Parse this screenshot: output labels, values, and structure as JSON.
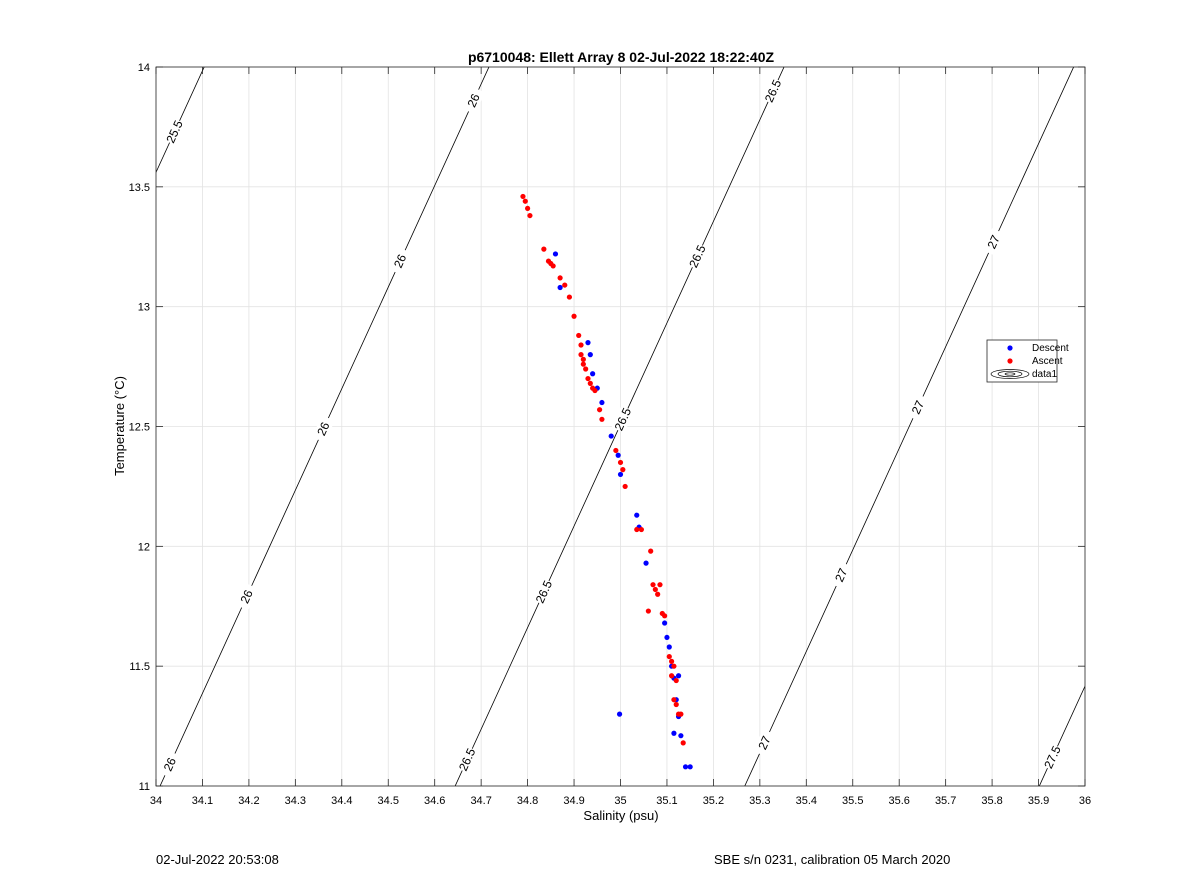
{
  "chart_data": {
    "type": "scatter",
    "title": "p6710048: Ellett Array 8 02-Jul-2022 18:22:40Z",
    "xlabel": "Salinity (psu)",
    "ylabel": "Temperature (°C)",
    "xlim": [
      34,
      36
    ],
    "ylim": [
      11,
      14
    ],
    "x_ticks": [
      34,
      34.1,
      34.2,
      34.3,
      34.4,
      34.5,
      34.6,
      34.7,
      34.8,
      34.9,
      35,
      35.1,
      35.2,
      35.3,
      35.4,
      35.5,
      35.6,
      35.7,
      35.8,
      35.9,
      36
    ],
    "x_tick_labels": [
      "34",
      "34.1",
      "34.2",
      "34.3",
      "34.4",
      "34.5",
      "34.6",
      "34.7",
      "34.8",
      "34.9",
      "35",
      "35.1",
      "35.2",
      "35.3",
      "35.4",
      "35.5",
      "35.6",
      "35.7",
      "35.8",
      "35.9",
      "36"
    ],
    "y_ticks": [
      11,
      11.5,
      12,
      12.5,
      13,
      13.5,
      14
    ],
    "y_tick_labels": [
      "11",
      "11.5",
      "12",
      "12.5",
      "13",
      "13.5",
      "14"
    ],
    "grid": true,
    "legend_position": "right",
    "series": [
      {
        "name": "Descent",
        "color": "#0000ff",
        "points": [
          [
            34.86,
            13.22
          ],
          [
            34.87,
            13.08
          ],
          [
            34.93,
            12.85
          ],
          [
            34.935,
            12.8
          ],
          [
            34.94,
            12.72
          ],
          [
            34.95,
            12.66
          ],
          [
            34.96,
            12.6
          ],
          [
            34.98,
            12.46
          ],
          [
            34.995,
            12.38
          ],
          [
            35.0,
            12.3
          ],
          [
            35.035,
            12.13
          ],
          [
            35.04,
            12.08
          ],
          [
            35.055,
            11.93
          ],
          [
            35.095,
            11.68
          ],
          [
            35.1,
            11.62
          ],
          [
            35.105,
            11.58
          ],
          [
            35.11,
            11.5
          ],
          [
            35.115,
            11.45
          ],
          [
            35.125,
            11.46
          ],
          [
            35.12,
            11.36
          ],
          [
            35.125,
            11.29
          ],
          [
            35.13,
            11.21
          ],
          [
            35.115,
            11.22
          ],
          [
            35.14,
            11.08
          ],
          [
            35.15,
            11.08
          ],
          [
            34.998,
            11.3
          ]
        ]
      },
      {
        "name": "Ascent",
        "color": "#ff0000",
        "points": [
          [
            34.79,
            13.46
          ],
          [
            34.795,
            13.44
          ],
          [
            34.8,
            13.41
          ],
          [
            34.805,
            13.38
          ],
          [
            34.835,
            13.24
          ],
          [
            34.845,
            13.19
          ],
          [
            34.85,
            13.18
          ],
          [
            34.855,
            13.17
          ],
          [
            34.87,
            13.12
          ],
          [
            34.88,
            13.09
          ],
          [
            34.89,
            13.04
          ],
          [
            34.9,
            12.96
          ],
          [
            34.91,
            12.88
          ],
          [
            34.915,
            12.84
          ],
          [
            34.915,
            12.8
          ],
          [
            34.92,
            12.78
          ],
          [
            34.92,
            12.76
          ],
          [
            34.925,
            12.74
          ],
          [
            34.93,
            12.7
          ],
          [
            34.935,
            12.68
          ],
          [
            34.94,
            12.66
          ],
          [
            34.945,
            12.65
          ],
          [
            34.955,
            12.57
          ],
          [
            34.96,
            12.53
          ],
          [
            34.99,
            12.4
          ],
          [
            35.0,
            12.35
          ],
          [
            35.005,
            12.32
          ],
          [
            35.01,
            12.25
          ],
          [
            35.035,
            12.07
          ],
          [
            35.045,
            12.07
          ],
          [
            35.065,
            11.98
          ],
          [
            35.07,
            11.84
          ],
          [
            35.075,
            11.82
          ],
          [
            35.08,
            11.8
          ],
          [
            35.085,
            11.84
          ],
          [
            35.06,
            11.73
          ],
          [
            35.09,
            11.72
          ],
          [
            35.095,
            11.71
          ],
          [
            35.105,
            11.54
          ],
          [
            35.11,
            11.52
          ],
          [
            35.115,
            11.5
          ],
          [
            35.11,
            11.46
          ],
          [
            35.12,
            11.44
          ],
          [
            35.115,
            11.36
          ],
          [
            35.12,
            11.34
          ],
          [
            35.125,
            11.3
          ],
          [
            35.13,
            11.3
          ],
          [
            35.135,
            11.18
          ]
        ]
      }
    ],
    "legend_extra": "data1",
    "contours": [
      {
        "label": "25.5",
        "label_positions": [
          [
            34.04,
            13.73
          ]
        ]
      },
      {
        "label": "26",
        "label_positions": [
          [
            34.03,
            11.09
          ],
          [
            34.2,
            11.79
          ],
          [
            34.37,
            12.49
          ],
          [
            34.54,
            13.19
          ],
          [
            34.71,
            13.86
          ]
        ]
      },
      {
        "label": "26.5",
        "label_positions": [
          [
            34.67,
            11.11
          ],
          [
            34.85,
            11.81
          ],
          [
            35.0,
            12.53
          ],
          [
            35.17,
            13.21
          ],
          [
            35.34,
            13.9
          ]
        ]
      },
      {
        "label": "27",
        "label_positions": [
          [
            35.31,
            11.18
          ],
          [
            35.49,
            11.88
          ],
          [
            35.67,
            12.58
          ],
          [
            35.84,
            13.27
          ]
        ]
      },
      {
        "label": "27.5",
        "label_positions": [
          [
            35.93,
            11.12
          ]
        ]
      }
    ]
  },
  "footer": {
    "timestamp": "02-Jul-2022 20:53:08",
    "instrument": "SBE s/n 0231, calibration 05 March 2020"
  }
}
